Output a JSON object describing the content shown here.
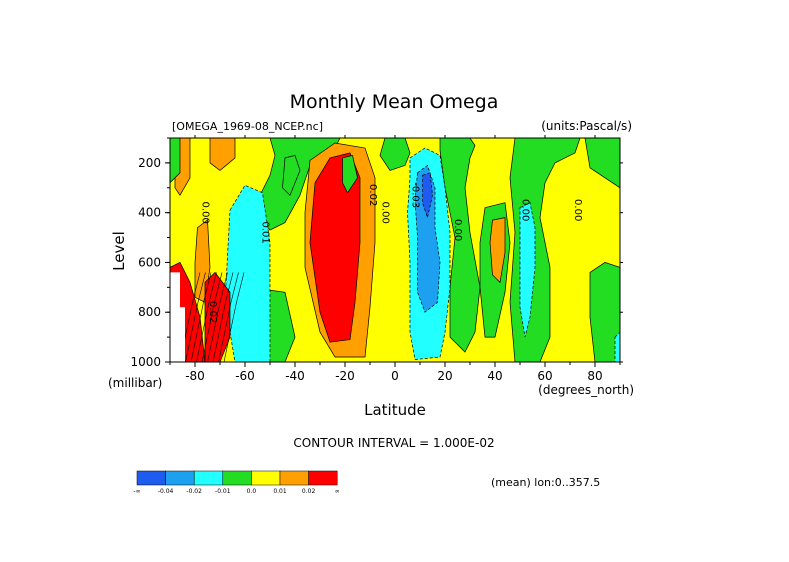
{
  "chart_data": {
    "type": "heatmap",
    "title": "Monthly Mean Omega",
    "file_label": "[OMEGA_1969-08_NCEP.nc]",
    "units_label": "(units:Pascal/s)",
    "xlabel": "Latitude",
    "xunits": "(degrees_north)",
    "ylabel": "Level",
    "yunits": "(millibar)",
    "xlim": [
      -90,
      90
    ],
    "ylim": [
      1000,
      100
    ],
    "x_ticks": [
      -80,
      -60,
      -40,
      -20,
      0,
      20,
      40,
      60,
      80
    ],
    "y_ticks": [
      200,
      400,
      600,
      800,
      1000
    ],
    "contour_interval_text": "CONTOUR INTERVAL = 1.000E-02",
    "mean_text": "(mean) lon:0..357.5",
    "contour_labels": [
      {
        "text": "0.00",
        "lat": -77,
        "lev": 400
      },
      {
        "text": "0.02",
        "lat": -74,
        "lev": 800
      },
      {
        "text": "0.01",
        "lat": -53,
        "lev": 480
      },
      {
        "text": "0.02",
        "lat": -10,
        "lev": 330
      },
      {
        "text": "0.00",
        "lat": -5,
        "lev": 400
      },
      {
        "text": "-0.03",
        "lat": 7,
        "lev": 330
      },
      {
        "text": "0.00",
        "lat": 24,
        "lev": 470
      },
      {
        "text": "0.00",
        "lat": 51,
        "lev": 390
      },
      {
        "text": "0.00",
        "lat": 72,
        "lev": 390
      }
    ],
    "legend": {
      "colors": [
        "#1e5cf0",
        "#1ea0f0",
        "#22ffff",
        "#22dd22",
        "#ffff00",
        "#ffa000",
        "#ff0000"
      ],
      "labels": [
        "-∞",
        "-0.04",
        "-0.02",
        "-0.01",
        "0.0",
        "0.01",
        "0.02",
        "∞"
      ]
    },
    "regions": [
      {
        "level": "pos1",
        "pts": [
          [
            -88,
            100
          ],
          [
            -82,
            100
          ],
          [
            -82,
            260
          ],
          [
            -86,
            330
          ],
          [
            -88,
            300
          ]
        ]
      },
      {
        "level": "neu",
        "pts": [
          [
            -90,
            100
          ],
          [
            -86,
            100
          ],
          [
            -86,
            240
          ],
          [
            -90,
            280
          ]
        ]
      },
      {
        "level": "pos1",
        "pts": [
          [
            -74,
            100
          ],
          [
            -64,
            100
          ],
          [
            -64,
            180
          ],
          [
            -70,
            230
          ],
          [
            -74,
            200
          ]
        ]
      },
      {
        "level": "neu",
        "pts": [
          [
            -50,
            100
          ],
          [
            -22,
            100
          ],
          [
            -24,
            140
          ],
          [
            -34,
            210
          ],
          [
            -38,
            330
          ],
          [
            -44,
            440
          ],
          [
            -50,
            470
          ],
          [
            -55,
            410
          ],
          [
            -54,
            330
          ],
          [
            -50,
            250
          ],
          [
            -48,
            170
          ]
        ]
      },
      {
        "level": "neu",
        "pts": [
          [
            -44,
            180
          ],
          [
            -40,
            170
          ],
          [
            -38,
            230
          ],
          [
            -42,
            330
          ],
          [
            -45,
            300
          ]
        ]
      },
      {
        "level": "neu",
        "pts": [
          [
            -58,
            700
          ],
          [
            -44,
            720
          ],
          [
            -40,
            900
          ],
          [
            -44,
            1000
          ],
          [
            -58,
            1000
          ],
          [
            -60,
            860
          ]
        ]
      },
      {
        "level": "neg1",
        "pts": [
          [
            -66,
            390
          ],
          [
            -60,
            290
          ],
          [
            -53,
            320
          ],
          [
            -50,
            520
          ],
          [
            -50,
            760
          ],
          [
            -50,
            1000
          ],
          [
            -64,
            1000
          ],
          [
            -68,
            760
          ]
        ]
      },
      {
        "level": "pos1",
        "pts": [
          [
            -79,
            460
          ],
          [
            -75,
            430
          ],
          [
            -74,
            620
          ],
          [
            -76,
            760
          ],
          [
            -80,
            740
          ],
          [
            -80,
            600
          ]
        ]
      },
      {
        "level": "pos2",
        "pts": [
          [
            -90,
            620
          ],
          [
            -86,
            600
          ],
          [
            -82,
            680
          ],
          [
            -78,
            820
          ],
          [
            -76,
            1000
          ],
          [
            -86,
            1000
          ],
          [
            -90,
            900
          ]
        ]
      },
      {
        "level": "pos2",
        "pts": [
          [
            -76,
            680
          ],
          [
            -72,
            640
          ],
          [
            -66,
            720
          ],
          [
            -66,
            900
          ],
          [
            -70,
            1000
          ],
          [
            -76,
            1000
          ]
        ]
      },
      {
        "level": "pos1",
        "pts": [
          [
            -34,
            190
          ],
          [
            -24,
            120
          ],
          [
            -12,
            140
          ],
          [
            -8,
            260
          ],
          [
            -8,
            520
          ],
          [
            -10,
            780
          ],
          [
            -12,
            980
          ],
          [
            -24,
            980
          ],
          [
            -30,
            880
          ],
          [
            -36,
            620
          ],
          [
            -36,
            400
          ]
        ]
      },
      {
        "level": "pos2",
        "pts": [
          [
            -32,
            280
          ],
          [
            -26,
            180
          ],
          [
            -18,
            160
          ],
          [
            -14,
            260
          ],
          [
            -14,
            520
          ],
          [
            -16,
            760
          ],
          [
            -18,
            910
          ],
          [
            -26,
            920
          ],
          [
            -30,
            800
          ],
          [
            -34,
            520
          ]
        ]
      },
      {
        "level": "neu",
        "pts": [
          [
            -21,
            180
          ],
          [
            -17,
            170
          ],
          [
            -15,
            260
          ],
          [
            -19,
            320
          ],
          [
            -21,
            280
          ]
        ]
      },
      {
        "level": "neu",
        "pts": [
          [
            -4,
            100
          ],
          [
            4,
            100
          ],
          [
            6,
            160
          ],
          [
            4,
            210
          ],
          [
            -2,
            230
          ],
          [
            -6,
            170
          ]
        ]
      },
      {
        "level": "neu",
        "pts": [
          [
            18,
            100
          ],
          [
            30,
            100
          ],
          [
            32,
            130
          ],
          [
            30,
            180
          ],
          [
            28,
            300
          ],
          [
            30,
            480
          ],
          [
            34,
            700
          ],
          [
            32,
            880
          ],
          [
            28,
            960
          ],
          [
            22,
            900
          ],
          [
            22,
            700
          ],
          [
            24,
            500
          ],
          [
            20,
            300
          ],
          [
            18,
            150
          ]
        ]
      },
      {
        "level": "neg1",
        "pts": [
          [
            6,
            180
          ],
          [
            12,
            140
          ],
          [
            18,
            170
          ],
          [
            20,
            300
          ],
          [
            22,
            480
          ],
          [
            22,
            700
          ],
          [
            20,
            880
          ],
          [
            18,
            980
          ],
          [
            8,
            990
          ],
          [
            6,
            880
          ],
          [
            6,
            600
          ],
          [
            5,
            400
          ],
          [
            6,
            260
          ]
        ]
      },
      {
        "level": "neg2",
        "pts": [
          [
            9,
            240
          ],
          [
            13,
            210
          ],
          [
            16,
            300
          ],
          [
            16,
            460
          ],
          [
            18,
            600
          ],
          [
            17,
            760
          ],
          [
            12,
            800
          ],
          [
            9,
            720
          ],
          [
            9,
            500
          ],
          [
            8,
            350
          ]
        ]
      },
      {
        "level": "neg3",
        "pts": [
          [
            11,
            250
          ],
          [
            14,
            240
          ],
          [
            15,
            330
          ],
          [
            13,
            420
          ],
          [
            11,
            360
          ]
        ]
      },
      {
        "level": "neu",
        "pts": [
          [
            36,
            380
          ],
          [
            44,
            360
          ],
          [
            46,
            520
          ],
          [
            44,
            720
          ],
          [
            40,
            900
          ],
          [
            36,
            900
          ],
          [
            34,
            700
          ],
          [
            34,
            520
          ]
        ]
      },
      {
        "level": "pos1",
        "pts": [
          [
            39,
            430
          ],
          [
            44,
            420
          ],
          [
            44,
            560
          ],
          [
            42,
            680
          ],
          [
            39,
            650
          ],
          [
            38,
            520
          ]
        ]
      },
      {
        "level": "neu",
        "pts": [
          [
            48,
            100
          ],
          [
            74,
            100
          ],
          [
            72,
            160
          ],
          [
            64,
            200
          ],
          [
            60,
            280
          ],
          [
            58,
            420
          ],
          [
            62,
            620
          ],
          [
            62,
            900
          ],
          [
            58,
            1000
          ],
          [
            48,
            1000
          ],
          [
            46,
            760
          ],
          [
            48,
            480
          ],
          [
            46,
            260
          ]
        ]
      },
      {
        "level": "neg1",
        "pts": [
          [
            50,
            380
          ],
          [
            54,
            360
          ],
          [
            56,
            460
          ],
          [
            56,
            620
          ],
          [
            54,
            820
          ],
          [
            52,
            900
          ],
          [
            50,
            780
          ],
          [
            50,
            560
          ]
        ]
      },
      {
        "level": "neu",
        "pts": [
          [
            76,
            100
          ],
          [
            90,
            100
          ],
          [
            90,
            300
          ],
          [
            84,
            260
          ],
          [
            78,
            220
          ]
        ]
      },
      {
        "level": "neu",
        "pts": [
          [
            78,
            640
          ],
          [
            84,
            600
          ],
          [
            90,
            620
          ],
          [
            90,
            1000
          ],
          [
            80,
            1000
          ],
          [
            78,
            820
          ]
        ]
      },
      {
        "level": "neg1",
        "pts": [
          [
            88,
            900
          ],
          [
            90,
            880
          ],
          [
            90,
            1000
          ],
          [
            88,
            1000
          ]
        ]
      }
    ],
    "blank_regions": [
      {
        "pts": [
          [
            -90,
            640
          ],
          [
            -86,
            640
          ],
          [
            -86,
            780
          ],
          [
            -84,
            780
          ],
          [
            -84,
            1000
          ],
          [
            -90,
            1000
          ]
        ]
      }
    ]
  }
}
